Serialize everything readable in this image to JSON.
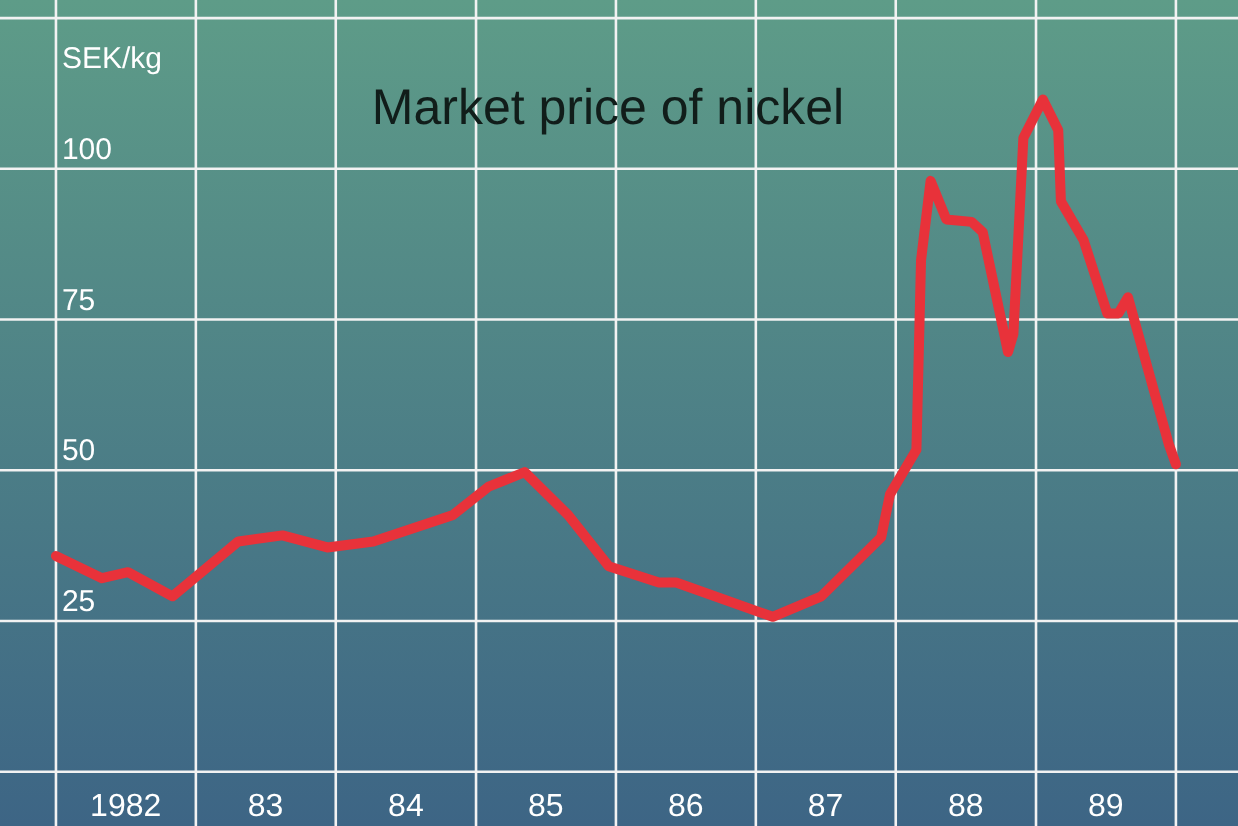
{
  "chart_data": {
    "type": "line",
    "title": "Market price of nickel",
    "ylabel": "SEK/kg",
    "x": [
      "1982-01-01",
      "1982-05-01",
      "1982-07-08",
      "1982-11-01",
      "1983-04-22",
      "1983-08-15",
      "1983-12-10",
      "1984-04-08",
      "1984-11-02",
      "1985-02-03",
      "1985-05-08",
      "1985-08-29",
      "1985-12-13",
      "1986-04-23",
      "1986-06-07",
      "1987-02-14",
      "1987-06-21",
      "1987-11-24",
      "1987-12-17",
      "1988-02-24",
      "1988-03-07",
      "1988-04-01",
      "1988-05-12",
      "1988-07-17",
      "1988-08-15",
      "1988-10-20",
      "1988-11-03",
      "1988-11-29",
      "1989-01-19",
      "1989-02-28",
      "1989-03-07",
      "1989-05-05",
      "1989-07-06",
      "1989-08-04",
      "1989-08-29",
      "1989-12-13",
      "1990-01-01"
    ],
    "series": [
      {
        "color": "#e8323a",
        "values": [
          35.8,
          32.1,
          33.1,
          29.1,
          38.2,
          39.2,
          37.2,
          38.2,
          42.6,
          47.3,
          49.7,
          42.6,
          34.1,
          31.4,
          31.4,
          25.7,
          29.1,
          38.9,
          46.0,
          53.4,
          84.8,
          98.0,
          91.6,
          91.2,
          89.5,
          69.6,
          72.6,
          105.1,
          111.5,
          106.4,
          94.6,
          88.2,
          76.0,
          76.0,
          78.7,
          54.4,
          51.0
        ]
      }
    ],
    "xlim": [
      "1981-08-08",
      "1990-06-12"
    ],
    "xticks": [
      {
        "value": "1982-01-01",
        "label": null
      },
      {
        "value": "1982-07-02",
        "label": "1982"
      },
      {
        "value": "1983-01-01",
        "label": null
      },
      {
        "value": "1983-07-02",
        "label": "83"
      },
      {
        "value": "1984-01-01",
        "label": null
      },
      {
        "value": "1984-07-02",
        "label": "84"
      },
      {
        "value": "1985-01-01",
        "label": null
      },
      {
        "value": "1985-07-02",
        "label": "85"
      },
      {
        "value": "1986-01-01",
        "label": null
      },
      {
        "value": "1986-07-02",
        "label": "86"
      },
      {
        "value": "1987-01-01",
        "label": null
      },
      {
        "value": "1987-07-02",
        "label": "87"
      },
      {
        "value": "1988-01-01",
        "label": null
      },
      {
        "value": "1988-07-02",
        "label": "88"
      },
      {
        "value": "1989-01-01",
        "label": null
      },
      {
        "value": "1989-07-02",
        "label": "89"
      },
      {
        "value": "1990-01-01",
        "label": null
      }
    ],
    "ylim": [
      -9,
      128
    ],
    "yticks": [
      {
        "value": 0,
        "label": null
      },
      25,
      50,
      75,
      100,
      {
        "value": 125,
        "label": null
      }
    ],
    "grid": true,
    "line_style": "solid",
    "marker": "none"
  }
}
